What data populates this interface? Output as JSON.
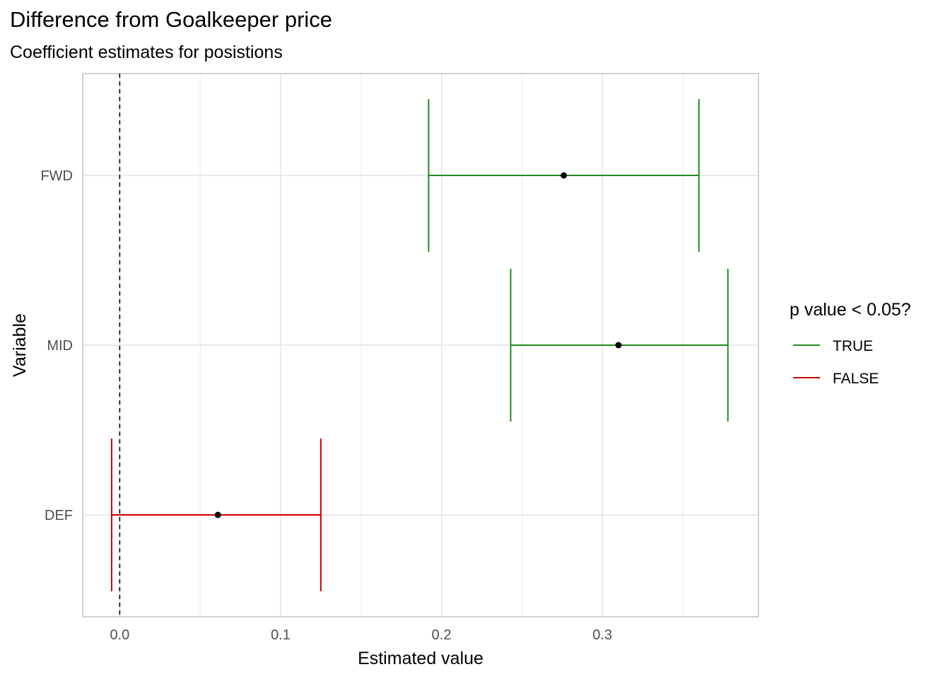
{
  "chart_data": {
    "type": "errorbar",
    "title": "Difference from Goalkeeper price",
    "subtitle": "Coefficient estimates for posistions",
    "xlabel": "Estimated value",
    "ylabel": "Variable",
    "xlim": [
      -0.023,
      0.397
    ],
    "x_ticks": [
      0.0,
      0.1,
      0.2,
      0.3
    ],
    "x_tick_labels": [
      "0.0",
      "0.1",
      "0.2",
      "0.3"
    ],
    "categories": [
      "DEF",
      "MID",
      "FWD"
    ],
    "reference_line": {
      "x": 0,
      "style": "dashed"
    },
    "grid": true,
    "legend": {
      "title": "p value < 0.05?",
      "position": "right",
      "entries": [
        {
          "label": "TRUE",
          "color": "#228B22"
        },
        {
          "label": "FALSE",
          "color": "#CC0000"
        }
      ]
    },
    "points": [
      {
        "variable": "FWD",
        "estimate": 0.276,
        "lower": 0.192,
        "upper": 0.36,
        "significant": "TRUE"
      },
      {
        "variable": "MID",
        "estimate": 0.31,
        "lower": 0.243,
        "upper": 0.378,
        "significant": "TRUE"
      },
      {
        "variable": "DEF",
        "estimate": 0.061,
        "lower": -0.005,
        "upper": 0.125,
        "significant": "FALSE"
      }
    ]
  }
}
